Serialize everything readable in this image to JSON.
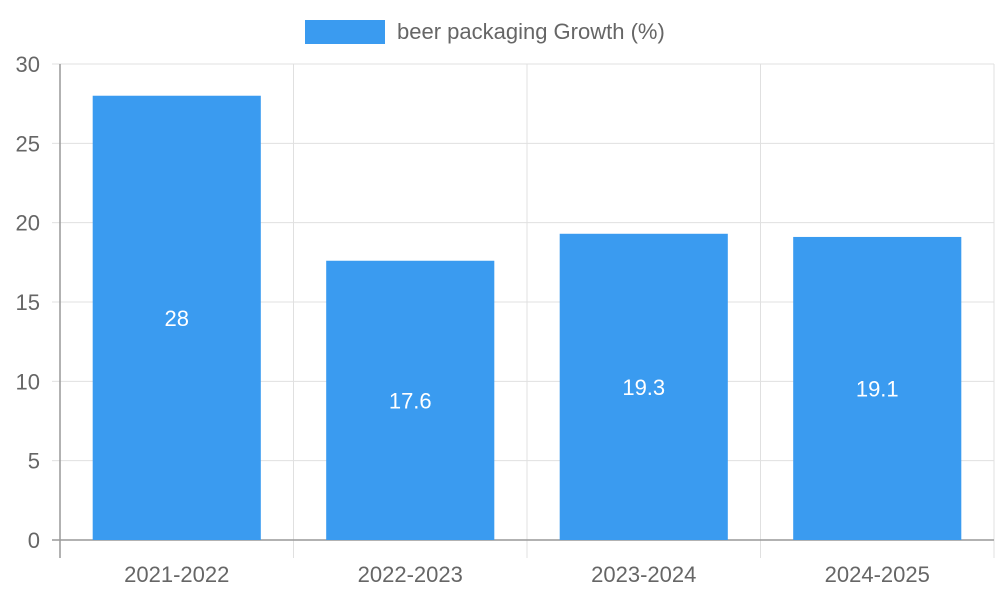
{
  "chart_data": {
    "type": "bar",
    "categories": [
      "2021-2022",
      "2022-2023",
      "2023-2024",
      "2024-2025"
    ],
    "series": [
      {
        "name": "beer packaging Growth (%)",
        "values": [
          28,
          17.6,
          19.3,
          19.1
        ],
        "color": "#3a9bf0"
      }
    ],
    "ylim": [
      0,
      30
    ],
    "yticks": [
      "0",
      "5",
      "10",
      "15",
      "20",
      "25",
      "30"
    ],
    "data_labels": [
      "28",
      "17.6",
      "19.3",
      "19.1"
    ],
    "grid": true,
    "legend_position": "top-center"
  },
  "colors": {
    "bar": "#3a9bf0",
    "grid": "#e0e0e0",
    "axis": "#999999",
    "text": "#666666",
    "label": "#ffffff"
  }
}
